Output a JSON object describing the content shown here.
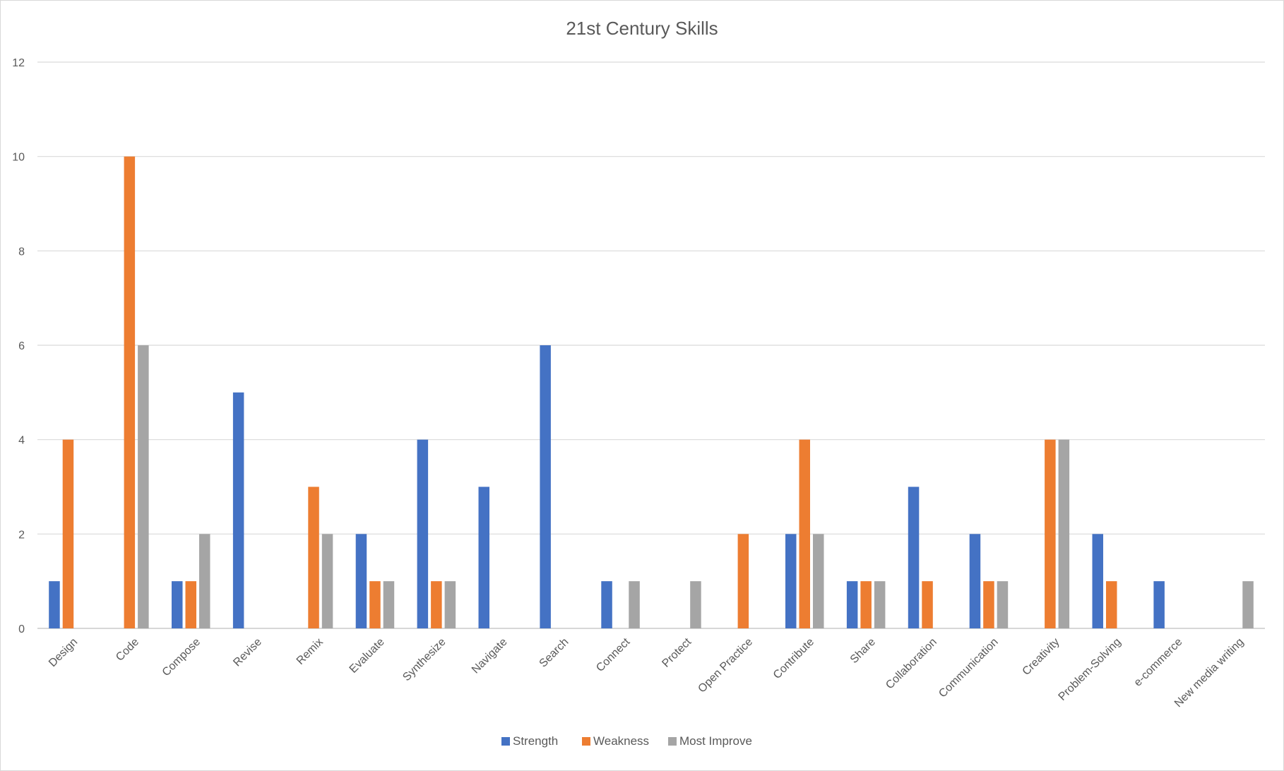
{
  "chart_data": {
    "type": "bar",
    "title": "21st Century Skills",
    "xlabel": "",
    "ylabel": "",
    "ylim": [
      0,
      12
    ],
    "yticks": [
      0,
      2,
      4,
      6,
      8,
      10,
      12
    ],
    "grid": true,
    "legend_position": "bottom",
    "categories": [
      "Design",
      "Code",
      "Compose",
      "Revise",
      "Remix",
      "Evaluate",
      "Synthesize",
      "Navigate",
      "Search",
      "Connect",
      "Protect",
      "Open Practice",
      "Contribute",
      "Share",
      "Collaboration",
      "Communication",
      "Creativity",
      "Problem-Solving",
      "e-commerce",
      "New media writing"
    ],
    "series": [
      {
        "name": "Strength",
        "color": "#4472c4",
        "values": [
          1,
          0,
          1,
          5,
          0,
          2,
          4,
          3,
          6,
          1,
          0,
          0,
          2,
          1,
          3,
          2,
          0,
          2,
          1,
          0
        ]
      },
      {
        "name": "Weakness",
        "color": "#ed7d31",
        "values": [
          4,
          10,
          1,
          0,
          3,
          1,
          1,
          0,
          0,
          0,
          0,
          2,
          4,
          1,
          1,
          1,
          4,
          1,
          0,
          0
        ]
      },
      {
        "name": "Most Improve",
        "color": "#a5a5a5",
        "values": [
          0,
          6,
          2,
          0,
          2,
          1,
          1,
          0,
          0,
          1,
          1,
          0,
          2,
          1,
          0,
          1,
          4,
          0,
          0,
          1
        ]
      }
    ]
  }
}
